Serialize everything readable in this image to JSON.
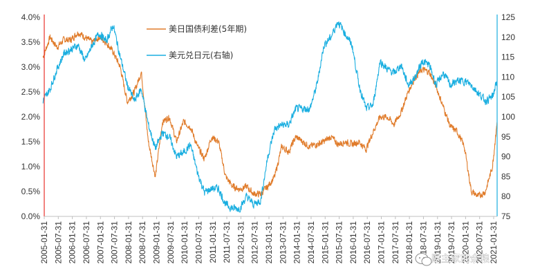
{
  "watermark": "财主家的余粮",
  "chart_data": {
    "type": "line",
    "title": "",
    "xlabel": "",
    "left_axis": {
      "ylim": [
        0.0,
        4.0
      ],
      "ticks": [
        "0.0%",
        "0.5%",
        "1.0%",
        "1.5%",
        "2.0%",
        "2.5%",
        "3.0%",
        "3.5%",
        "4.0%"
      ]
    },
    "right_axis": {
      "ylim": [
        75,
        125
      ],
      "ticks": [
        "75",
        "80",
        "85",
        "90",
        "95",
        "100",
        "105",
        "110",
        "115",
        "120",
        "125"
      ]
    },
    "x_ticks": [
      "2005-01-31",
      "2005-07-31",
      "2006-01-31",
      "2006-07-31",
      "2007-01-31",
      "2007-07-31",
      "2008-01-31",
      "2008-07-31",
      "2009-01-31",
      "2009-07-31",
      "2010-01-31",
      "2010-07-31",
      "2011-01-31",
      "2011-07-31",
      "2012-01-31",
      "2012-07-31",
      "2013-01-31",
      "2013-07-31",
      "2014-01-31",
      "2014-07-31",
      "2015-01-31",
      "2015-07-31",
      "2016-01-31",
      "2016-07-31",
      "2017-01-31",
      "2017-07-31",
      "2018-01-31",
      "2018-07-31",
      "2019-01-31",
      "2019-07-31",
      "2020-01-31",
      "2020-07-31",
      "2021-01-31"
    ],
    "legend_position": "top-center",
    "grid": false,
    "series": [
      {
        "name": "美日国债利差(5年期)",
        "axis": "left",
        "color": "#e07b2a",
        "x": [
          "2005-01",
          "2005-04",
          "2005-07",
          "2005-10",
          "2006-01",
          "2006-04",
          "2006-07",
          "2006-10",
          "2007-01",
          "2007-04",
          "2007-07",
          "2007-10",
          "2008-01",
          "2008-04",
          "2008-07",
          "2008-10",
          "2009-01",
          "2009-04",
          "2009-07",
          "2009-10",
          "2010-01",
          "2010-04",
          "2010-07",
          "2010-10",
          "2011-01",
          "2011-04",
          "2011-07",
          "2011-10",
          "2012-01",
          "2012-04",
          "2012-07",
          "2012-10",
          "2013-01",
          "2013-04",
          "2013-07",
          "2013-10",
          "2014-01",
          "2014-04",
          "2014-07",
          "2014-10",
          "2015-01",
          "2015-04",
          "2015-07",
          "2015-10",
          "2016-01",
          "2016-04",
          "2016-07",
          "2016-10",
          "2017-01",
          "2017-04",
          "2017-07",
          "2017-10",
          "2018-01",
          "2018-04",
          "2018-07",
          "2018-10",
          "2019-01",
          "2019-04",
          "2019-07",
          "2019-10",
          "2020-01",
          "2020-04",
          "2020-07",
          "2020-10",
          "2021-01",
          "2021-03"
        ],
        "values": [
          3.2,
          3.6,
          3.4,
          3.55,
          3.55,
          3.7,
          3.6,
          3.5,
          3.6,
          3.5,
          3.3,
          3.0,
          2.3,
          2.5,
          2.9,
          1.5,
          0.8,
          1.9,
          2.0,
          1.5,
          1.9,
          1.8,
          1.4,
          1.15,
          1.6,
          1.5,
          0.8,
          0.6,
          0.55,
          0.6,
          0.45,
          0.45,
          0.6,
          0.8,
          1.4,
          1.3,
          1.6,
          1.5,
          1.4,
          1.45,
          1.5,
          1.6,
          1.45,
          1.5,
          1.45,
          1.5,
          1.35,
          1.7,
          2.0,
          2.0,
          1.85,
          2.1,
          2.5,
          2.8,
          2.95,
          2.9,
          2.6,
          2.2,
          1.8,
          1.7,
          1.4,
          0.5,
          0.4,
          0.5,
          1.0,
          1.9
        ]
      },
      {
        "name": "美元兑日元(右轴)",
        "axis": "right",
        "color": "#19aee0",
        "x": [
          "2005-01",
          "2005-04",
          "2005-07",
          "2005-10",
          "2006-01",
          "2006-04",
          "2006-07",
          "2006-10",
          "2007-01",
          "2007-04",
          "2007-07",
          "2007-10",
          "2008-01",
          "2008-04",
          "2008-07",
          "2008-10",
          "2009-01",
          "2009-04",
          "2009-07",
          "2009-10",
          "2010-01",
          "2010-04",
          "2010-07",
          "2010-10",
          "2011-01",
          "2011-04",
          "2011-07",
          "2011-10",
          "2012-01",
          "2012-04",
          "2012-07",
          "2012-10",
          "2013-01",
          "2013-04",
          "2013-07",
          "2013-10",
          "2014-01",
          "2014-04",
          "2014-07",
          "2014-10",
          "2015-01",
          "2015-04",
          "2015-07",
          "2015-10",
          "2016-01",
          "2016-04",
          "2016-07",
          "2016-10",
          "2017-01",
          "2017-04",
          "2017-07",
          "2017-10",
          "2018-01",
          "2018-04",
          "2018-07",
          "2018-10",
          "2019-01",
          "2019-04",
          "2019-07",
          "2019-10",
          "2020-01",
          "2020-04",
          "2020-07",
          "2020-10",
          "2021-01",
          "2021-03"
        ],
        "values": [
          104,
          107,
          112,
          116,
          117,
          118,
          114,
          118,
          121,
          119,
          123,
          115,
          108,
          104,
          107,
          98,
          92,
          96,
          95,
          90,
          91,
          93,
          86,
          81,
          82,
          82,
          78,
          77,
          77,
          80,
          78,
          79,
          90,
          97,
          98,
          98,
          102,
          102,
          102,
          108,
          118,
          120,
          124,
          121,
          118,
          108,
          102,
          103,
          114,
          112,
          111,
          113,
          108,
          110,
          114,
          113,
          108,
          111,
          108,
          109,
          109,
          108,
          106,
          104,
          105,
          109
        ]
      }
    ]
  }
}
